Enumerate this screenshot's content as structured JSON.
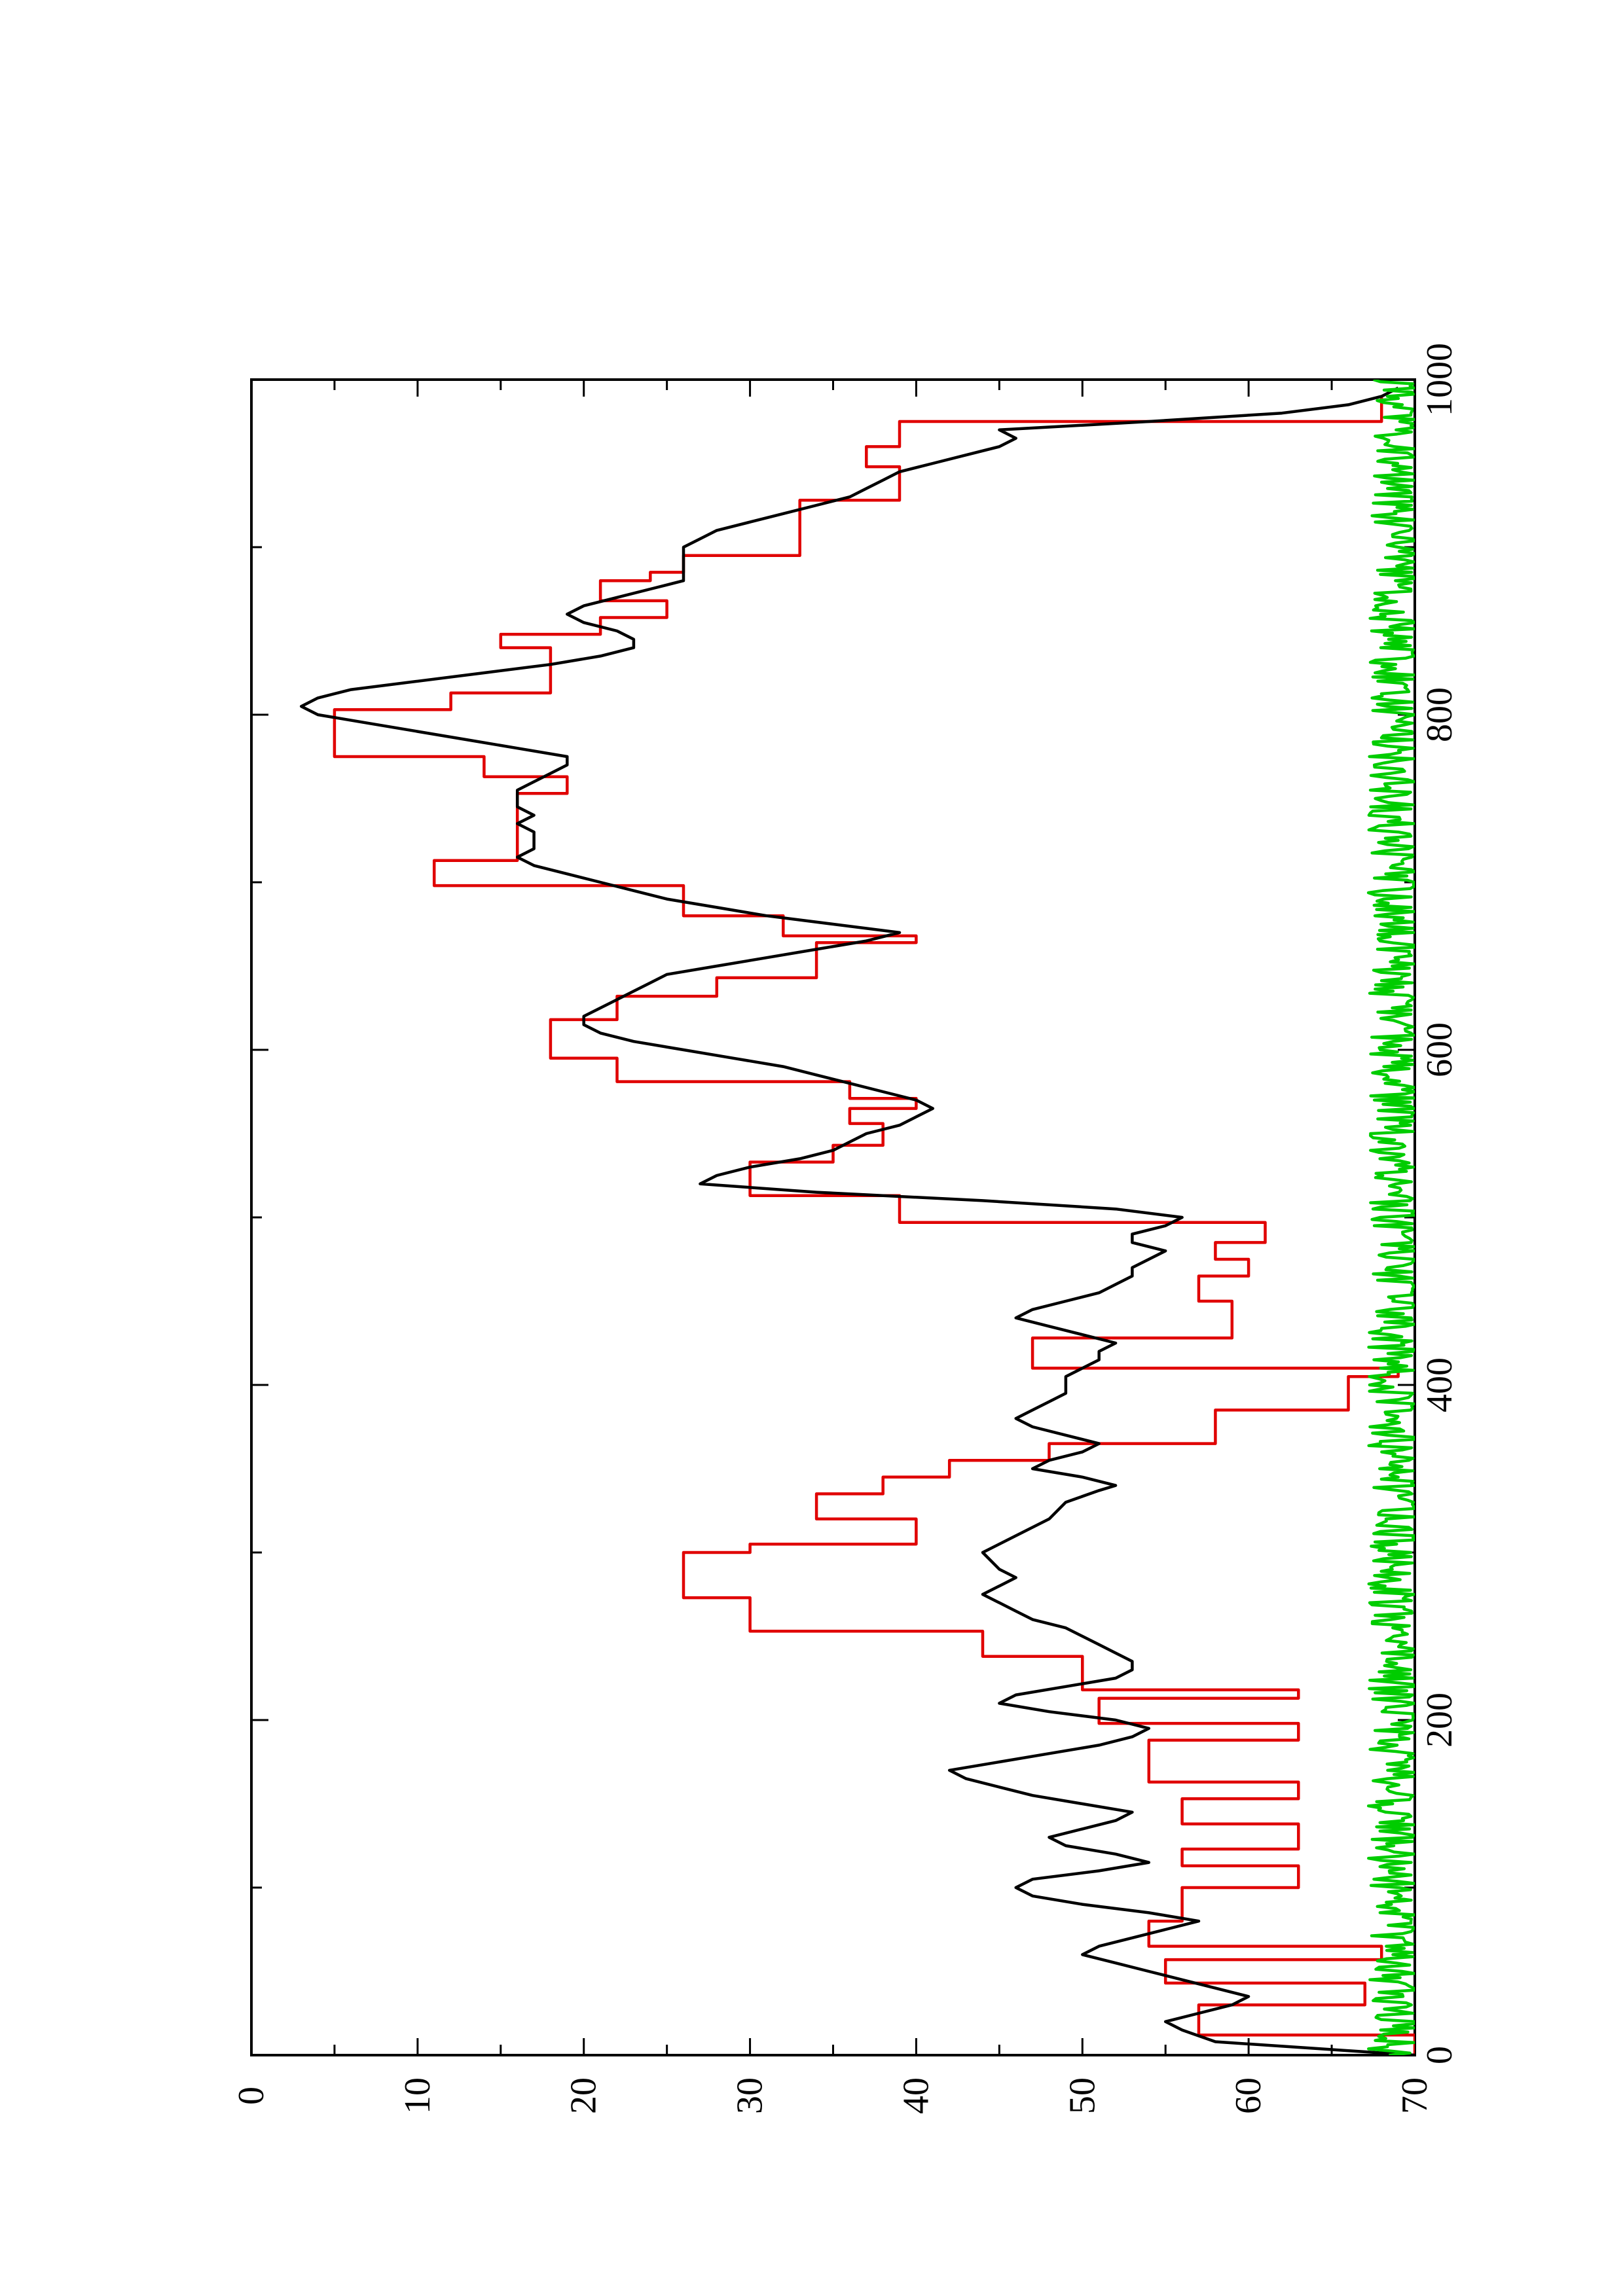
{
  "chart_data": {
    "type": "line",
    "orientation": "rotated-90-ccw",
    "title": "",
    "xlabel": "",
    "ylabel": "",
    "xlim": [
      0,
      1000
    ],
    "ylim": [
      0,
      70
    ],
    "x_ticks": [
      "0",
      "200",
      "400",
      "600",
      "800",
      "1000"
    ],
    "y_ticks": [
      "0",
      "10",
      "20",
      "30",
      "40",
      "50",
      "60",
      "70"
    ],
    "grid": false,
    "legend": "none",
    "series": [
      {
        "color": "#e00000",
        "style": "step",
        "x": [
          0,
          12,
          12,
          30,
          30,
          43,
          43,
          57,
          57,
          65,
          65,
          80,
          80,
          100,
          100,
          113,
          113,
          123,
          123,
          138,
          138,
          153,
          153,
          163,
          163,
          188,
          188,
          198,
          198,
          213,
          213,
          218,
          218,
          238,
          238,
          253,
          253,
          273,
          273,
          300,
          300,
          305,
          305,
          320,
          320,
          335,
          335,
          345,
          345,
          355,
          355,
          365,
          365,
          385,
          385,
          405,
          405,
          410,
          410,
          428,
          428,
          450,
          450,
          465,
          465,
          475,
          475,
          485,
          485,
          497,
          497,
          513,
          513,
          533,
          533,
          543,
          543,
          556,
          556,
          565,
          565,
          571,
          571,
          581,
          581,
          595,
          595,
          618,
          618,
          632,
          632,
          643,
          643,
          664,
          664,
          668,
          668,
          680,
          680,
          698,
          698,
          713,
          713,
          753,
          753,
          763,
          763,
          775,
          775,
          803,
          803,
          813,
          813,
          840,
          840,
          848,
          848,
          858,
          858,
          868,
          868,
          880,
          880,
          885,
          885,
          895,
          895,
          928,
          928,
          948,
          948,
          960,
          960,
          975,
          975,
          990
        ],
        "y": [
          0,
          0,
          13,
          13,
          3,
          3,
          15,
          15,
          2,
          2,
          16,
          16,
          14,
          14,
          7,
          7,
          14,
          14,
          7,
          7,
          14,
          14,
          7,
          7,
          16,
          16,
          7,
          7,
          19,
          19,
          7,
          7,
          20,
          20,
          26,
          26,
          40,
          40,
          44,
          44,
          40,
          40,
          30,
          30,
          36,
          36,
          32,
          32,
          28,
          28,
          22,
          22,
          12,
          12,
          4,
          4,
          1,
          1,
          23,
          23,
          11,
          11,
          13,
          13,
          10,
          10,
          12,
          12,
          9,
          9,
          31,
          31,
          40,
          40,
          35,
          35,
          32,
          32,
          34,
          34,
          30,
          30,
          34,
          34,
          48,
          48,
          52,
          52,
          48,
          48,
          42,
          42,
          36,
          36,
          30,
          30,
          38,
          38,
          44,
          44,
          59,
          59,
          54,
          54,
          51,
          51,
          56,
          56,
          65,
          65,
          58,
          58,
          52,
          52,
          55,
          55,
          49,
          49,
          45,
          45,
          49,
          49,
          46,
          46,
          44,
          44,
          37,
          37,
          31,
          31,
          33,
          33,
          31,
          31,
          2,
          2
        ]
      },
      {
        "color": "#000000",
        "style": "line",
        "x": [
          0,
          8,
          15,
          20,
          25,
          30,
          35,
          40,
          45,
          50,
          55,
          60,
          65,
          70,
          75,
          80,
          85,
          90,
          95,
          100,
          105,
          110,
          115,
          120,
          125,
          130,
          135,
          140,
          145,
          150,
          155,
          160,
          165,
          170,
          175,
          180,
          185,
          190,
          195,
          200,
          205,
          210,
          215,
          220,
          225,
          230,
          235,
          240,
          245,
          250,
          255,
          260,
          265,
          270,
          275,
          280,
          285,
          290,
          300,
          310,
          320,
          330,
          337,
          340,
          345,
          350,
          355,
          360,
          365,
          370,
          375,
          380,
          385,
          390,
          395,
          400,
          405,
          410,
          415,
          420,
          425,
          430,
          435,
          440,
          445,
          450,
          455,
          460,
          465,
          470,
          475,
          480,
          485,
          490,
          495,
          500,
          505,
          510,
          515,
          520,
          525,
          530,
          535,
          540,
          545,
          550,
          555,
          560,
          565,
          570,
          575,
          580,
          585,
          590,
          595,
          600,
          605,
          610,
          615,
          620,
          625,
          630,
          635,
          640,
          645,
          650,
          655,
          660,
          665,
          670,
          675,
          680,
          685,
          690,
          695,
          700,
          705,
          710,
          715,
          720,
          725,
          730,
          735,
          740,
          745,
          750,
          755,
          760,
          765,
          770,
          775,
          780,
          785,
          790,
          795,
          800,
          805,
          810,
          815,
          820,
          825,
          830,
          835,
          840,
          845,
          850,
          855,
          860,
          865,
          870,
          875,
          880,
          885,
          890,
          895,
          900,
          905,
          910,
          915,
          920,
          925,
          930,
          935,
          940,
          945,
          950,
          955,
          960,
          965,
          970,
          975,
          980,
          985,
          990,
          995
        ],
        "y": [
          0,
          12,
          14,
          15,
          13,
          11,
          10,
          12,
          14,
          16,
          18,
          20,
          19,
          17,
          15,
          13,
          16,
          20,
          23,
          24,
          23,
          19,
          16,
          18,
          21,
          22,
          20,
          18,
          17,
          20,
          23,
          25,
          27,
          28,
          25,
          22,
          19,
          17,
          16,
          18,
          22,
          25,
          24,
          21,
          18,
          17,
          17,
          18,
          19,
          20,
          21,
          23,
          24,
          25,
          26,
          25,
          24,
          25,
          26,
          24,
          22,
          21,
          19,
          18,
          20,
          23,
          22,
          20,
          19,
          21,
          23,
          24,
          23,
          22,
          21,
          21,
          21,
          20,
          19,
          19,
          18,
          20,
          22,
          24,
          23,
          21,
          19,
          18,
          17,
          17,
          16,
          15,
          17,
          17,
          15,
          14,
          18,
          26,
          36,
          43,
          42,
          40,
          37,
          35,
          34,
          33,
          31,
          30,
          29,
          30,
          32,
          34,
          36,
          38,
          41,
          44,
          47,
          49,
          50,
          50,
          49,
          48,
          47,
          46,
          45,
          42,
          39,
          36,
          33,
          31,
          35,
          39,
          42,
          45,
          47,
          49,
          51,
          53,
          54,
          53,
          53,
          53,
          54,
          53,
          54,
          54,
          54,
          53,
          52,
          51,
          51,
          54,
          57,
          60,
          63,
          66,
          67,
          66,
          64,
          60,
          56,
          52,
          49,
          47,
          47,
          48,
          50,
          51,
          50,
          48,
          46,
          44,
          44,
          44,
          44,
          44,
          43,
          42,
          40,
          38,
          36,
          34,
          33,
          32,
          31,
          29,
          27,
          25,
          24,
          25,
          16,
          8,
          4,
          2,
          1
        ]
      },
      {
        "color": "#00cc00",
        "style": "noise",
        "mean": 1.0,
        "amplitude": 1.8,
        "x_range": [
          0,
          1000
        ],
        "points": 800
      }
    ]
  }
}
